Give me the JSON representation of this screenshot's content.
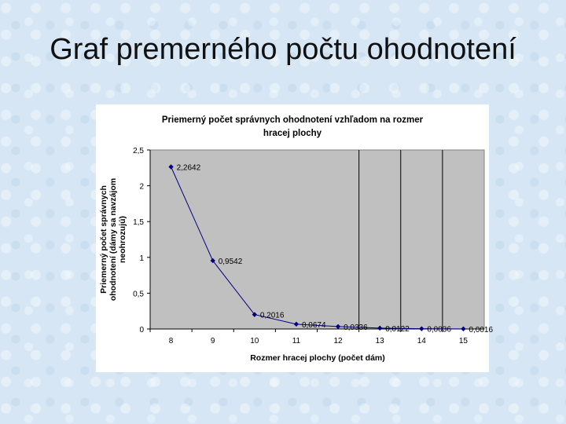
{
  "slide": {
    "title": "Graf premerného počtu ohodnotení"
  },
  "chart_data": {
    "type": "line",
    "title_lines": [
      "Priemerný počet správnych ohodnotení vzhľadom na rozmer",
      "hracej plochy"
    ],
    "ylabel_lines": [
      "Priemerný počet správnych",
      "ohodnotení (dámy sa navzájom",
      "neohrozujú)"
    ],
    "xlabel": "Rozmer hracej plochy (počet dám)",
    "categories": [
      "8",
      "9",
      "10",
      "11",
      "12",
      "13",
      "14",
      "15"
    ],
    "values": [
      2.2642,
      0.9542,
      0.2016,
      0.0674,
      0.0336,
      0.0122,
      0.0036,
      0.0016
    ],
    "data_labels": [
      "2,2642",
      "0,9542",
      "0,2016",
      "0,0674",
      "0,0336",
      "0,0122",
      "0,0036",
      "0,0016"
    ],
    "yticks": [
      "0",
      "0,5",
      "1",
      "1,5",
      "2",
      "2,5"
    ],
    "ytick_values": [
      0,
      0.5,
      1,
      1.5,
      2,
      2.5
    ],
    "ylim": [
      0,
      2.5
    ],
    "vertical_lines_after": [
      "12",
      "13",
      "14"
    ],
    "colors": {
      "series": "#000080",
      "plot_bg": "#c0c0c0",
      "chart_bg": "#ffffff"
    }
  }
}
